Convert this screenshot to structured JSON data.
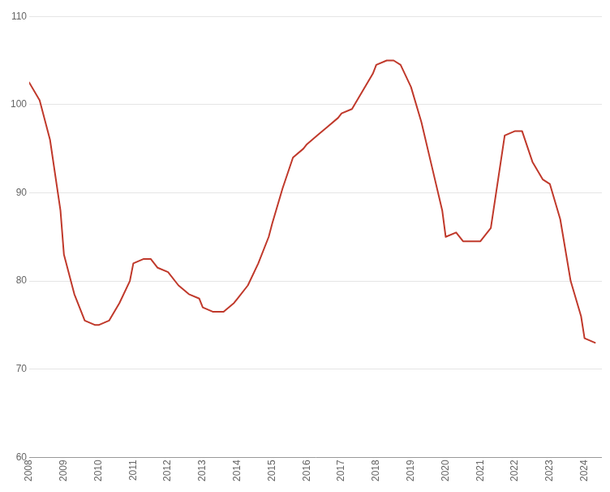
{
  "chart_data": {
    "type": "line",
    "x": [
      2008.0,
      2008.3,
      2008.6,
      2008.9,
      2009.0,
      2009.3,
      2009.6,
      2009.9,
      2010.0,
      2010.3,
      2010.6,
      2010.9,
      2011.0,
      2011.3,
      2011.5,
      2011.7,
      2012.0,
      2012.3,
      2012.6,
      2012.9,
      2013.0,
      2013.3,
      2013.6,
      2013.9,
      2014.0,
      2014.3,
      2014.6,
      2014.9,
      2015.0,
      2015.3,
      2015.6,
      2015.9,
      2016.0,
      2016.3,
      2016.6,
      2016.9,
      2017.0,
      2017.3,
      2017.6,
      2017.9,
      2018.0,
      2018.3,
      2018.5,
      2018.7,
      2019.0,
      2019.3,
      2019.6,
      2019.9,
      2020.0,
      2020.3,
      2020.5,
      2021.0,
      2021.3,
      2021.7,
      2022.0,
      2022.2,
      2022.5,
      2022.8,
      2023.0,
      2023.3,
      2023.6,
      2023.9,
      2024.0,
      2024.3
    ],
    "values": [
      102.5,
      100.5,
      96.0,
      88.0,
      83.0,
      78.5,
      75.5,
      75.0,
      75.0,
      75.5,
      77.5,
      80.0,
      82.0,
      82.5,
      82.5,
      81.5,
      81.0,
      79.5,
      78.5,
      78.0,
      77.0,
      76.5,
      76.5,
      77.5,
      78.0,
      79.5,
      82.0,
      85.0,
      86.5,
      90.5,
      94.0,
      95.0,
      95.5,
      96.5,
      97.5,
      98.5,
      99.0,
      99.5,
      101.5,
      103.5,
      104.5,
      105.0,
      105.0,
      104.5,
      102.0,
      98.0,
      93.0,
      88.0,
      85.0,
      85.5,
      84.5,
      84.5,
      86.0,
      96.5,
      97.0,
      97.0,
      93.5,
      91.5,
      91.0,
      87.0,
      80.0,
      76.0,
      73.5,
      73.0
    ],
    "color": "#c0392b",
    "xlim": [
      2008.0,
      2024.5
    ],
    "ylim": [
      60,
      110
    ],
    "xticks": [
      2008,
      2009,
      2010,
      2011,
      2012,
      2013,
      2014,
      2015,
      2016,
      2017,
      2018,
      2019,
      2020,
      2021,
      2022,
      2023,
      2024
    ],
    "yticks": [
      60,
      70,
      80,
      90,
      100,
      110
    ],
    "grid": "y"
  }
}
